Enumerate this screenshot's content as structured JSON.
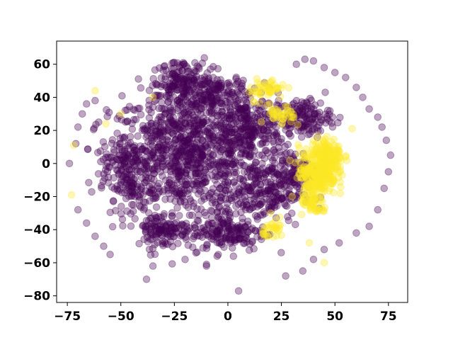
{
  "chart_data": {
    "type": "scatter",
    "title": "",
    "xlabel": "",
    "ylabel": "",
    "xlim": [
      -80,
      84
    ],
    "ylim": [
      -84,
      74
    ],
    "xticks": [
      -75,
      -50,
      -25,
      0,
      25,
      50,
      75
    ],
    "yticks": [
      -80,
      -60,
      -40,
      -20,
      0,
      20,
      40,
      60
    ],
    "xtick_labels": [
      "−75",
      "−50",
      "−25",
      "0",
      "25",
      "50",
      "75"
    ],
    "ytick_labels": [
      "−80",
      "−60",
      "−40",
      "−20",
      "0",
      "20",
      "40",
      "60"
    ],
    "grid": false,
    "legend": "none",
    "point_alpha": 0.35,
    "series": [
      {
        "color": "#440154",
        "description_points": [
          [
            -74,
            0
          ],
          [
            -71,
            12
          ],
          [
            -70,
            22
          ],
          [
            -68,
            30
          ],
          [
            -66,
            36
          ],
          [
            -62,
            38
          ],
          [
            -70,
            -28
          ],
          [
            -66,
            -36
          ],
          [
            -62,
            -44
          ],
          [
            -58,
            -50
          ],
          [
            -55,
            -55
          ],
          [
            -38,
            -70
          ],
          [
            -35,
            -62
          ],
          [
            5,
            -77
          ],
          [
            27,
            -68
          ],
          [
            35,
            -65
          ],
          [
            40,
            -58
          ],
          [
            45,
            -52
          ],
          [
            52,
            -48
          ],
          [
            60,
            -42
          ],
          [
            66,
            -38
          ],
          [
            70,
            -28
          ],
          [
            73,
            -15
          ],
          [
            75,
            -5
          ],
          [
            76,
            5
          ],
          [
            74,
            14
          ],
          [
            72,
            22
          ],
          [
            70,
            28
          ],
          [
            66,
            33
          ],
          [
            63,
            40
          ],
          [
            60,
            46
          ],
          [
            55,
            52
          ],
          [
            50,
            55
          ],
          [
            45,
            58
          ],
          [
            40,
            62
          ],
          [
            36,
            63
          ],
          [
            32,
            60
          ],
          [
            -10,
            -62
          ],
          [
            -10,
            -61
          ],
          [
            -20,
            -58
          ],
          [
            -5,
            -56
          ]
        ],
        "clusters": [
          {
            "cx": -20,
            "cy": 5,
            "rx": 32,
            "ry": 34,
            "n": 900
          },
          {
            "cx": -22,
            "cy": 48,
            "rx": 12,
            "ry": 14,
            "n": 160
          },
          {
            "cx": -5,
            "cy": 40,
            "rx": 14,
            "ry": 14,
            "n": 160
          },
          {
            "cx": 10,
            "cy": 20,
            "rx": 15,
            "ry": 18,
            "n": 220
          },
          {
            "cx": 15,
            "cy": -18,
            "rx": 18,
            "ry": 16,
            "n": 220
          },
          {
            "cx": 0,
            "cy": -42,
            "rx": 16,
            "ry": 10,
            "n": 160
          },
          {
            "cx": -30,
            "cy": -40,
            "rx": 12,
            "ry": 10,
            "n": 120
          },
          {
            "cx": 35,
            "cy": 28,
            "rx": 12,
            "ry": 10,
            "n": 140
          },
          {
            "cx": 30,
            "cy": -5,
            "rx": 10,
            "ry": 12,
            "n": 100
          },
          {
            "cx": -48,
            "cy": -5,
            "rx": 10,
            "ry": 20,
            "n": 140
          }
        ]
      },
      {
        "color": "#fde725",
        "description_points": [
          [
            -73,
            -19
          ],
          [
            -72,
            11
          ],
          [
            -62,
            44
          ],
          [
            -57,
            24
          ],
          [
            -50,
            30
          ],
          [
            -35,
            40
          ],
          [
            58,
            21
          ],
          [
            45,
            -60
          ],
          [
            38,
            -48
          ],
          [
            20,
            -30
          ],
          [
            30,
            -20
          ]
        ],
        "clusters": [
          {
            "cx": 42,
            "cy": -5,
            "rx": 8,
            "ry": 14,
            "n": 260
          },
          {
            "cx": 47,
            "cy": 5,
            "rx": 6,
            "ry": 10,
            "n": 120
          },
          {
            "cx": 25,
            "cy": 28,
            "rx": 6,
            "ry": 6,
            "n": 40
          },
          {
            "cx": 18,
            "cy": 45,
            "rx": 8,
            "ry": 6,
            "n": 50
          },
          {
            "cx": 22,
            "cy": -40,
            "rx": 5,
            "ry": 5,
            "n": 30
          },
          {
            "cx": 40,
            "cy": -25,
            "rx": 6,
            "ry": 6,
            "n": 50
          }
        ]
      }
    ]
  }
}
